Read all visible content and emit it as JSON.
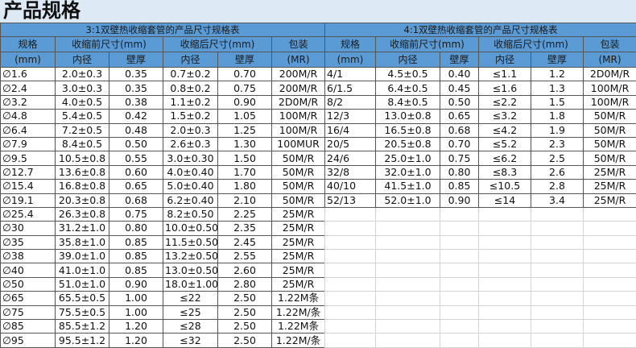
{
  "page_title": "产品规格",
  "colors": {
    "header_bg": "#5b9bd5",
    "title_bg": "#dde9f5"
  },
  "headers": {
    "spec": "规格",
    "spec_unit": "(mm)",
    "before": "收缩前尺寸(mm)",
    "after": "收缩后尺寸(mm)",
    "inner": "内径",
    "wall": "壁厚",
    "pack": "包装",
    "pack_unit": "(MR)"
  },
  "left_table": {
    "title": "3:1双壁热收缩套管的产品尺寸规格表",
    "rows": [
      [
        "∅1.6",
        "2.0±0.3",
        "0.35",
        "0.7±0.2",
        "0.70",
        "200M/R"
      ],
      [
        "∅2.4",
        "3.0±0.3",
        "0.35",
        "0.8±0.2",
        "0.75",
        "200M/R"
      ],
      [
        "∅3.2",
        "4.0±0.5",
        "0.38",
        "1.1±0.2",
        "0.90",
        "2D0M/R"
      ],
      [
        "∅4.8",
        "5.4±0.5",
        "0.42",
        "1.5±0.2",
        "1.05",
        "100M/R"
      ],
      [
        "∅6.4",
        "7.2±0.5",
        "0.48",
        "2.0±0.3",
        "1.25",
        "100M/R"
      ],
      [
        "∅7.9",
        "8.4±0.5",
        "0.50",
        "2.6±0.3",
        "1.30",
        "100MUR"
      ],
      [
        "∅9.5",
        "10.5±0.8",
        "0.55",
        "3.0±0.30",
        "1.50",
        "50M/R"
      ],
      [
        "∅12.7",
        "13.6±0.8",
        "0.60",
        "4.0±0.40",
        "1.70",
        "50M/R"
      ],
      [
        "∅15.4",
        "16.8±0.8",
        "0.65",
        "5.0±0.40",
        "1.80",
        "50M/R"
      ],
      [
        "∅19.1",
        "20.3±0.8",
        "0.68",
        "6.2±0.40",
        "2.10",
        "50M/R"
      ],
      [
        "∅25.4",
        "26.3±0.8",
        "0.75",
        "8.2±0.50",
        "2.25",
        "25M/R"
      ],
      [
        "∅30",
        "31.2±1.0",
        "0.80",
        "10.0±0.50",
        "2.35",
        "25M/R"
      ],
      [
        "∅35",
        "35.8±1.0",
        "0.85",
        "11.5±0.50",
        "2.45",
        "25M/R"
      ],
      [
        "∅38",
        "39.0±1.0",
        "0.85",
        "13.2±0.50",
        "2.55",
        "25M/R"
      ],
      [
        "∅40",
        "41.0±1.0",
        "0.85",
        "13.0±0.50",
        "2.60",
        "25M/R"
      ],
      [
        "∅50",
        "51.0±1.0",
        "0.90",
        "18.0±1.00",
        "2.80",
        "25M/R"
      ],
      [
        "∅65",
        "65.5±0.5",
        "1.00",
        "≤22",
        "2.50",
        "1.22M条"
      ],
      [
        "∅75",
        "75.5±0.5",
        "1.00",
        "≤25",
        "2.50",
        "1.22M/条"
      ],
      [
        "∅85",
        "85.5±1.2",
        "1.20",
        "≤28",
        "2.50",
        "1.22M条"
      ],
      [
        "∅95",
        "95.5±1.2",
        "1.20",
        "≤32",
        "2.50",
        "1.22M/条"
      ]
    ]
  },
  "right_table": {
    "title": "4:1双壁热收缩套管的产品尺寸规格表",
    "rows": [
      [
        "4/1",
        "4.5±0.5",
        "0.40",
        "≤1.1",
        "1.2",
        "2D0M/R"
      ],
      [
        "6/1.5",
        "6.4±0.5",
        "0.45",
        "≤1.6",
        "1.3",
        "100M/R"
      ],
      [
        "8/2",
        "8.4±0.5",
        "0.50",
        "≤2.2",
        "1.5",
        "100M/R"
      ],
      [
        "12/3",
        "13.0±0.8",
        "0.65",
        "≤3.2",
        "1.8",
        "50M/R"
      ],
      [
        "16/4",
        "16.5±0.8",
        "0.68",
        "≤4.2",
        "1.9",
        "50M/R"
      ],
      [
        "20/5",
        "20.5±0.8",
        "0.70",
        "≤5.2",
        "2.3",
        "50M/R"
      ],
      [
        "24/6",
        "25.0±1.0",
        "0.75",
        "≤6.2",
        "2.5",
        "50M/R"
      ],
      [
        "32/8",
        "32.0±1.0",
        "0.80",
        "≤8.3",
        "2.6",
        "25M/R"
      ],
      [
        "40/10",
        "41.5±1.0",
        "0.85",
        "≤10.5",
        "2.8",
        "25M/R"
      ],
      [
        "52/13",
        "52.0±1.0",
        "0.90",
        "≤14",
        "3.4",
        "25M/R"
      ]
    ]
  }
}
